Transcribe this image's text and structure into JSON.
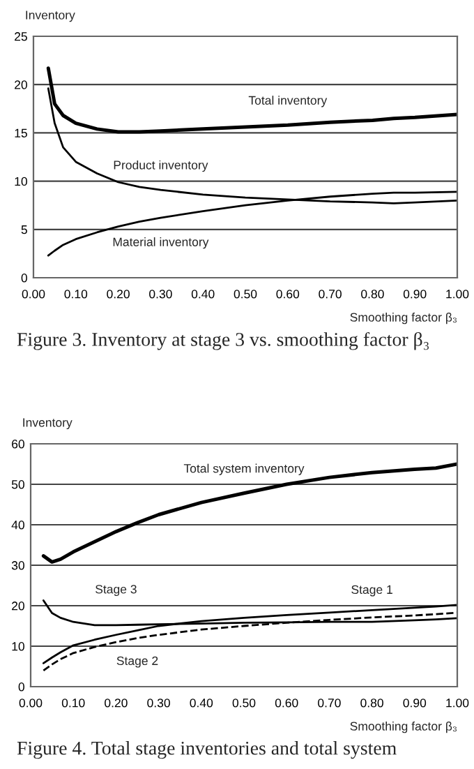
{
  "chart_data": [
    {
      "type": "line",
      "xlabel": "Smoothing factor β₃",
      "ylabel": "Inventory",
      "xlim": [
        0,
        1.0
      ],
      "xticks": [
        {
          "value": 0,
          "label": "0.00"
        },
        {
          "value": 0.1,
          "label": "0.10"
        },
        {
          "value": 0.2,
          "label": "0.20"
        },
        {
          "value": 0.3,
          "label": "0.30"
        },
        {
          "value": 0.4,
          "label": "0.40"
        },
        {
          "value": 0.5,
          "label": "0.50"
        },
        {
          "value": 0.6,
          "label": "0.60"
        },
        {
          "value": 0.7,
          "label": "0.70"
        },
        {
          "value": 0.8,
          "label": "0.80"
        },
        {
          "value": 0.9,
          "label": "0.90"
        },
        {
          "value": 1.0,
          "label": "1.00"
        }
      ],
      "ylim": [
        0,
        25
      ],
      "yticks": [
        0,
        5,
        10,
        15,
        20,
        25
      ],
      "grid": "y",
      "legend": false,
      "marker": "none",
      "x": [
        0.035,
        0.05,
        0.07,
        0.1,
        0.15,
        0.2,
        0.25,
        0.3,
        0.4,
        0.5,
        0.6,
        0.7,
        0.8,
        0.85,
        0.9,
        1.0
      ],
      "series": [
        {
          "name": "Total inventory",
          "color": "#000000",
          "line_style": "solid",
          "values": [
            21.7,
            18.0,
            16.8,
            16.0,
            15.4,
            15.1,
            15.1,
            15.2,
            15.4,
            15.6,
            15.8,
            16.1,
            16.3,
            16.5,
            16.6,
            16.9
          ]
        },
        {
          "name": "Product inventory",
          "color": "#000000",
          "line_style": "solid",
          "values": [
            19.6,
            16.0,
            13.5,
            12.0,
            10.8,
            9.9,
            9.4,
            9.1,
            8.6,
            8.3,
            8.1,
            7.9,
            7.8,
            7.7,
            7.8,
            8.0
          ]
        },
        {
          "name": "Material inventory",
          "color": "#000000",
          "line_style": "solid",
          "values": [
            2.3,
            2.8,
            3.4,
            4.0,
            4.7,
            5.3,
            5.8,
            6.2,
            6.9,
            7.5,
            8.0,
            8.4,
            8.7,
            8.8,
            8.8,
            8.9
          ]
        }
      ],
      "annotations": [
        "Figure 3. Inventory at stage 3 vs. smoothing factor β₃"
      ]
    },
    {
      "type": "line",
      "xlabel": "Smoothing factor β₃",
      "ylabel": "Inventory",
      "xlim": [
        0,
        1.0
      ],
      "xticks": [
        {
          "value": 0,
          "label": "0.00"
        },
        {
          "value": 0.1,
          "label": "0.10"
        },
        {
          "value": 0.2,
          "label": "0.20"
        },
        {
          "value": 0.3,
          "label": "0.30"
        },
        {
          "value": 0.4,
          "label": "0.40"
        },
        {
          "value": 0.5,
          "label": "0.50"
        },
        {
          "value": 0.6,
          "label": "0.60"
        },
        {
          "value": 0.7,
          "label": "0.70"
        },
        {
          "value": 0.8,
          "label": "0.80"
        },
        {
          "value": 0.9,
          "label": "0.90"
        },
        {
          "value": 1.0,
          "label": "1.00"
        }
      ],
      "ylim": [
        0,
        60
      ],
      "yticks": [
        0,
        10,
        20,
        30,
        40,
        50,
        60
      ],
      "grid": "y",
      "legend": false,
      "marker": "none",
      "x": [
        0.03,
        0.05,
        0.07,
        0.1,
        0.15,
        0.2,
        0.25,
        0.3,
        0.4,
        0.5,
        0.6,
        0.7,
        0.8,
        0.9,
        0.95,
        1.0
      ],
      "series": [
        {
          "name": "Total system inventory",
          "color": "#000000",
          "line_style": "solid",
          "values": [
            32.3,
            30.8,
            31.5,
            33.3,
            35.8,
            38.3,
            40.5,
            42.5,
            45.5,
            47.8,
            50.0,
            51.7,
            52.9,
            53.7,
            54.0,
            55.0
          ]
        },
        {
          "name": "Stage 3",
          "color": "#000000",
          "line_style": "solid",
          "values": [
            21.3,
            18.2,
            17.0,
            16.0,
            15.2,
            15.2,
            15.3,
            15.4,
            15.6,
            15.8,
            15.9,
            16.0,
            16.0,
            16.4,
            16.6,
            16.9
          ]
        },
        {
          "name": "Stage 1",
          "color": "#000000",
          "line_style": "solid",
          "values": [
            5.8,
            7.2,
            8.5,
            10.2,
            11.6,
            12.8,
            13.9,
            15.0,
            16.2,
            17.0,
            17.7,
            18.3,
            18.9,
            19.5,
            19.8,
            20.2
          ]
        },
        {
          "name": "Stage 2",
          "color": "#000000",
          "line_style": "dashed",
          "values": [
            4.0,
            5.5,
            6.8,
            8.3,
            9.8,
            11.0,
            12.0,
            12.8,
            14.1,
            15.0,
            15.8,
            16.5,
            17.1,
            17.6,
            17.9,
            18.3
          ]
        }
      ],
      "annotations": [
        "Figure 4. Total stage inventories and total system"
      ]
    }
  ]
}
